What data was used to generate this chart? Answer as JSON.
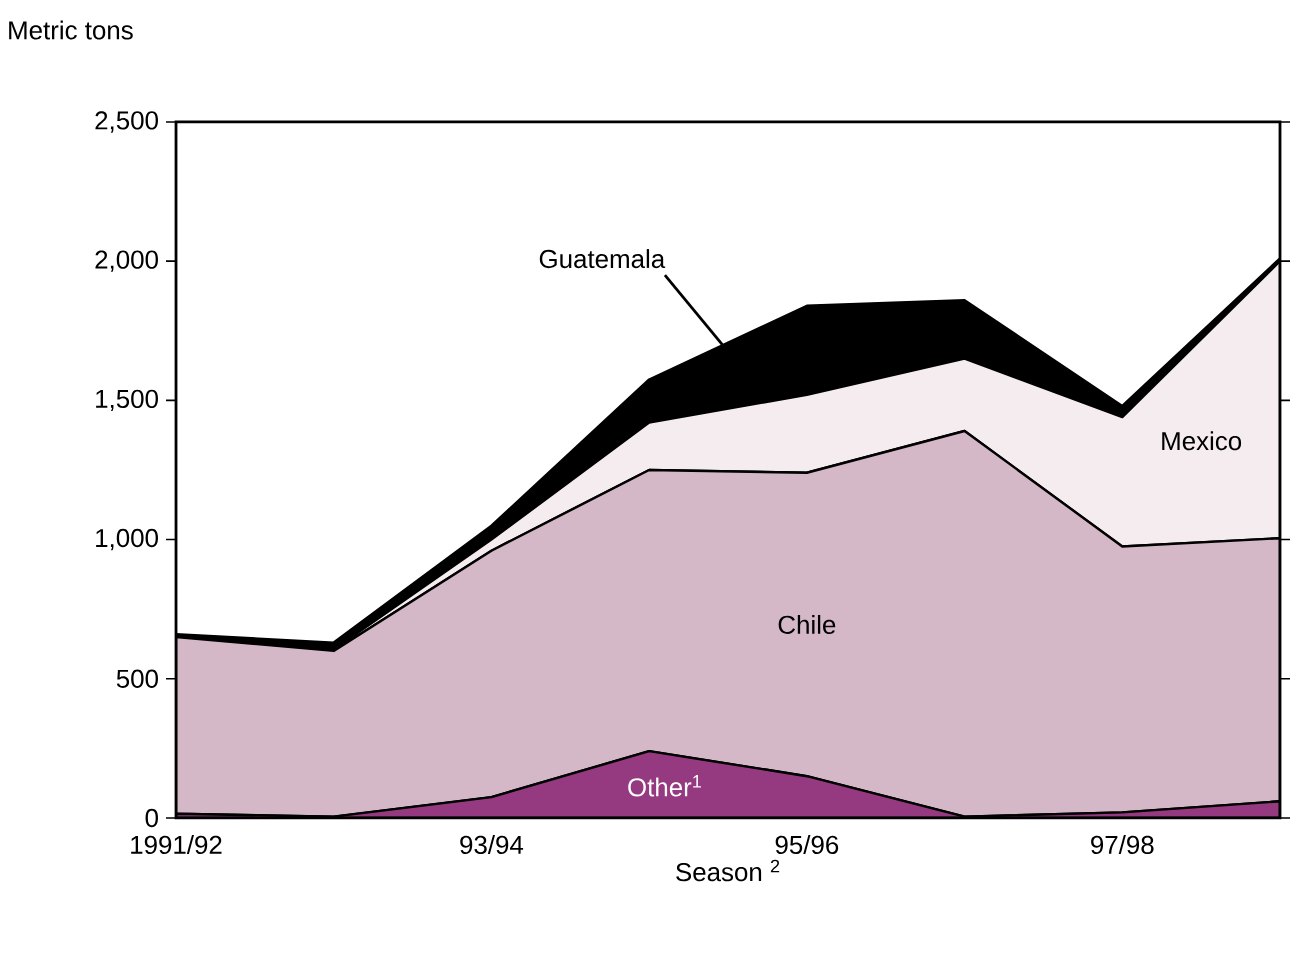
{
  "chart_data": {
    "type": "area",
    "stacked": true,
    "ylabel": "Metric tons",
    "xlabel": "Season $^{2}$",
    "categories": [
      "1991/92",
      null,
      "93/94",
      null,
      "95/96",
      null,
      "97/98",
      null
    ],
    "ylim": [
      0,
      2500
    ],
    "yticks": [
      0,
      500,
      {
        "value": 1000,
        "label": "1,000"
      },
      {
        "value": 1500,
        "label": "1,500"
      },
      {
        "value": 2000,
        "label": "2,000"
      },
      {
        "value": 2500,
        "label": "2,500"
      }
    ],
    "grid": false,
    "legend": false,
    "series": [
      {
        "name": "Other$^{1}$",
        "color": "#953a80",
        "values": [
          15,
          5,
          75,
          240,
          150,
          5,
          20,
          60
        ]
      },
      {
        "name": "Chile",
        "color": "#d4b8c8",
        "values": [
          635,
          595,
          885,
          1010,
          1090,
          1385,
          955,
          945
        ]
      },
      {
        "name": "Mexico",
        "color": "#f5ecef",
        "values": [
          5,
          5,
          40,
          170,
          280,
          260,
          465,
          995
        ]
      },
      {
        "name": "Guatemala",
        "color": "#000000",
        "values": [
          5,
          25,
          50,
          155,
          320,
          210,
          40,
          10
        ]
      }
    ]
  }
}
